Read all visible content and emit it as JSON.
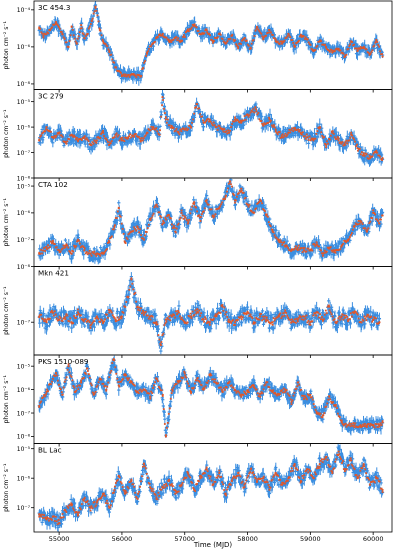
{
  "figure": {
    "xlabel": "Time (MJD)",
    "x_ticks": [
      55000,
      56000,
      57000,
      58000,
      59000,
      60000
    ],
    "colors": {
      "binned_points": "#3b8ee0",
      "fine_points": "#e0572a",
      "axes": "#000000"
    }
  },
  "chart_data": [
    {
      "type": "scatter",
      "panel_label": "3C 454.3",
      "ylabel": "photon cm⁻² s⁻¹",
      "y_scale": "log",
      "ylim": [
        5e-09,
        0.0003
      ],
      "y_ticks": [
        {
          "v": 1e-08,
          "label": "10⁻⁸"
        },
        {
          "v": 1e-06,
          "label": "10⁻⁶"
        },
        {
          "v": 0.0001,
          "label": "10⁻⁴"
        }
      ],
      "xlim": [
        54600,
        60300
      ],
      "series": [
        {
          "x": [
            54683,
            54750,
            54850,
            54950,
            55050,
            55150,
            55200,
            55280,
            55350,
            55400,
            55450,
            55520,
            55580,
            55650,
            55700,
            55800,
            55900,
            56000,
            56100,
            56200,
            56300,
            56400,
            56550,
            56650,
            56750,
            56850,
            56950,
            57050,
            57150,
            57250,
            57350,
            57450,
            57550,
            57650,
            57750,
            57850,
            57950,
            58050,
            58150,
            58250,
            58350,
            58450,
            58550,
            58650,
            58750,
            58850,
            58950,
            59050,
            59150,
            59250,
            59350,
            59450,
            59550,
            59650,
            59750,
            59850,
            59950,
            60050,
            60150
          ],
          "y": [
            1e-05,
            4e-06,
            8e-06,
            2e-05,
            5e-06,
            1e-06,
            1.2e-05,
            1.5e-06,
            1.5e-05,
            3e-06,
            5e-06,
            2.5e-05,
            0.00015,
            8e-06,
            2e-06,
            6e-07,
            8e-08,
            3e-08,
            3e-08,
            3e-08,
            2.5e-08,
            5e-07,
            3e-06,
            5e-06,
            2e-06,
            3e-06,
            2e-06,
            8e-06,
            1.5e-05,
            5e-06,
            8e-06,
            2e-06,
            5e-06,
            1.5e-06,
            4e-06,
            1e-06,
            3e-06,
            8e-07,
            1.2e-05,
            3e-06,
            8e-06,
            2e-06,
            1.5e-06,
            5e-06,
            1e-06,
            4e-06,
            2.5e-06,
            6e-07,
            2e-06,
            1e-06,
            5e-07,
            8e-07,
            3e-07,
            2e-06,
            6e-07,
            1e-06,
            4e-07,
            2e-06,
            3e-07
          ]
        }
      ]
    },
    {
      "type": "scatter",
      "panel_label": "3C 279",
      "ylabel": "photon cm⁻² s⁻¹",
      "y_scale": "log",
      "ylim": [
        1e-08,
        3e-05
      ],
      "y_ticks": [
        {
          "v": 1e-08,
          "label": "10⁻⁸"
        },
        {
          "v": 1e-07,
          "label": "10⁻⁷"
        },
        {
          "v": 1e-06,
          "label": "10⁻⁶"
        },
        {
          "v": 1e-05,
          "label": "10⁻⁵"
        }
      ],
      "xlim": [
        54600,
        60300
      ],
      "series": [
        {
          "x": [
            54683,
            54800,
            54900,
            55000,
            55100,
            55200,
            55300,
            55400,
            55500,
            55600,
            55700,
            55800,
            55900,
            56000,
            56100,
            56200,
            56300,
            56400,
            56500,
            56600,
            56646,
            56700,
            56800,
            56900,
            57000,
            57100,
            57189,
            57300,
            57400,
            57500,
            57600,
            57700,
            57800,
            57900,
            58000,
            58134,
            58250,
            58350,
            58450,
            58550,
            58650,
            58750,
            58850,
            58950,
            59050,
            59150,
            59250,
            59350,
            59450,
            59550,
            59650,
            59750,
            59850,
            59950,
            60050,
            60150
          ],
          "y": [
            3e-07,
            1e-06,
            4e-07,
            6e-07,
            2.5e-07,
            5e-07,
            3e-07,
            4e-07,
            2e-07,
            3e-07,
            6e-07,
            2e-07,
            5e-07,
            3e-07,
            4e-07,
            5e-07,
            3e-07,
            6e-07,
            1e-06,
            5e-07,
            1.5e-05,
            2e-06,
            1e-06,
            6e-07,
            8e-07,
            1e-06,
            8e-06,
            1.5e-06,
            2e-06,
            1e-06,
            8e-07,
            6e-07,
            2e-06,
            1.5e-06,
            3e-06,
            5e-06,
            1.2e-06,
            2e-06,
            8e-07,
            4e-07,
            6e-07,
            8e-07,
            6e-07,
            4e-07,
            3e-07,
            1e-06,
            2e-07,
            6e-07,
            3e-07,
            2e-07,
            5e-07,
            1.5e-07,
            8e-08,
            6e-08,
            1e-07,
            6e-08
          ]
        }
      ]
    },
    {
      "type": "scatter",
      "panel_label": "CTA 102",
      "ylabel": "photon cm⁻² s⁻¹",
      "y_scale": "log",
      "ylim": [
        1e-08,
        2e-05
      ],
      "y_ticks": [
        {
          "v": 1e-08,
          "label": "10⁻⁸"
        },
        {
          "v": 1e-07,
          "label": "10⁻⁷"
        },
        {
          "v": 1e-06,
          "label": "10⁻⁶"
        },
        {
          "v": 1e-05,
          "label": "10⁻⁵"
        }
      ],
      "xlim": [
        54600,
        60300
      ],
      "series": [
        {
          "x": [
            54683,
            54800,
            54900,
            55000,
            55100,
            55200,
            55300,
            55400,
            55500,
            55600,
            55700,
            55800,
            55880,
            55950,
            56050,
            56150,
            56250,
            56350,
            56450,
            56550,
            56650,
            56750,
            56850,
            56950,
            57050,
            57150,
            57250,
            57350,
            57450,
            57550,
            57650,
            57720,
            57800,
            57900,
            58000,
            58100,
            58200,
            58300,
            58400,
            58500,
            58600,
            58700,
            58800,
            58900,
            59000,
            59100,
            59200,
            59300,
            59400,
            59500,
            59600,
            59700,
            59800,
            59900,
            60000,
            60100,
            60150
          ],
          "y": [
            3e-08,
            5e-08,
            8e-08,
            4e-08,
            6e-08,
            3e-08,
            1e-07,
            4e-08,
            3e-08,
            3e-08,
            3e-08,
            8e-08,
            3e-07,
            1.5e-06,
            8e-08,
            2e-07,
            3e-07,
            1e-07,
            6e-07,
            2e-06,
            4e-07,
            8e-07,
            2e-07,
            1e-06,
            4e-07,
            2.5e-06,
            5e-07,
            3e-06,
            8e-07,
            1.5e-06,
            4e-06,
            1.5e-05,
            3e-06,
            8e-06,
            2e-06,
            1e-06,
            3e-06,
            8e-07,
            2e-07,
            1e-07,
            6e-08,
            4e-08,
            5e-08,
            4e-08,
            4e-08,
            8e-08,
            3e-08,
            5e-08,
            4e-08,
            6e-08,
            1e-07,
            3e-07,
            5e-07,
            2e-07,
            1e-06,
            4e-07,
            8e-07
          ]
        }
      ]
    },
    {
      "type": "scatter",
      "panel_label": "Mkn 421",
      "ylabel": "photon cm⁻² s⁻¹",
      "y_scale": "log",
      "ylim": [
        1e-08,
        5e-06
      ],
      "y_ticks": [
        {
          "v": 1e-07,
          "label": "10⁻⁷"
        }
      ],
      "xlim": [
        54600,
        60300
      ],
      "series": [
        {
          "x": [
            54683,
            54800,
            54900,
            55000,
            55100,
            55200,
            55300,
            55400,
            55500,
            55600,
            55700,
            55800,
            55900,
            56000,
            56100,
            56150,
            56250,
            56350,
            56450,
            56550,
            56620,
            56700,
            56800,
            56900,
            57000,
            57100,
            57200,
            57300,
            57400,
            57500,
            57600,
            57700,
            57800,
            57900,
            58000,
            58100,
            58200,
            58300,
            58400,
            58500,
            58600,
            58700,
            58800,
            58900,
            59000,
            59100,
            59200,
            59300,
            59400,
            59500,
            59600,
            59700,
            59800,
            59900,
            60000,
            60100
          ],
          "y": [
            1.5e-07,
            1e-07,
            2e-07,
            1.2e-07,
            1.5e-07,
            1e-07,
            2e-07,
            1.2e-07,
            8e-08,
            1.5e-07,
            1e-07,
            2e-07,
            1.2e-07,
            1.5e-07,
            6e-07,
            2e-06,
            3e-07,
            2e-07,
            1.5e-07,
            1e-07,
            2e-08,
            1.2e-07,
            1.5e-07,
            2e-07,
            1e-07,
            1.5e-07,
            2.5e-07,
            1.2e-07,
            1e-07,
            1.5e-07,
            3e-07,
            1.2e-07,
            1e-07,
            1.5e-07,
            2e-07,
            1e-07,
            1.5e-07,
            1.2e-07,
            1e-07,
            1.5e-07,
            2e-07,
            1e-07,
            1.2e-07,
            1.5e-07,
            1e-07,
            2e-07,
            1.2e-07,
            3e-07,
            1e-07,
            1.5e-07,
            1.2e-07,
            2e-07,
            1e-07,
            1.5e-07,
            1.2e-07,
            1e-07
          ]
        }
      ]
    },
    {
      "type": "scatter",
      "panel_label": "PKS 1510-089",
      "ylabel": "photon cm⁻² s⁻¹",
      "y_scale": "log",
      "ylim": [
        5e-09,
        3e-05
      ],
      "y_ticks": [
        {
          "v": 1e-08,
          "label": "10⁻⁸"
        },
        {
          "v": 1e-07,
          "label": "10⁻⁷"
        },
        {
          "v": 1e-06,
          "label": "10⁻⁶"
        },
        {
          "v": 1e-05,
          "label": "10⁻⁵"
        }
      ],
      "xlim": [
        54600,
        60300
      ],
      "series": [
        {
          "x": [
            54683,
            54800,
            54950,
            55050,
            55150,
            55250,
            55350,
            55450,
            55550,
            55650,
            55750,
            55870,
            55950,
            56050,
            56150,
            56250,
            56350,
            56450,
            56550,
            56650,
            56700,
            56800,
            56900,
            57000,
            57100,
            57200,
            57300,
            57400,
            57500,
            57600,
            57700,
            57800,
            57900,
            58000,
            58100,
            58200,
            58300,
            58400,
            58500,
            58600,
            58700,
            58800,
            58900,
            59000,
            59100,
            59200,
            59300,
            59400,
            59500,
            59600,
            59700,
            59800,
            59900,
            60000,
            60100,
            60150
          ],
          "y": [
            2e-07,
            8e-07,
            5e-06,
            6e-07,
            1e-05,
            8e-07,
            2e-06,
            8e-06,
            6e-07,
            3e-06,
            1e-06,
            2e-05,
            1.5e-06,
            4e-06,
            2e-06,
            8e-07,
            1e-06,
            5e-07,
            3e-06,
            6e-07,
            1e-08,
            1e-06,
            2e-06,
            5e-06,
            8e-07,
            3e-06,
            1e-06,
            4e-06,
            2e-06,
            8e-07,
            2e-06,
            1e-06,
            6e-07,
            8e-07,
            1.5e-06,
            5e-07,
            2e-06,
            8e-07,
            6e-07,
            1e-06,
            3e-07,
            2e-06,
            4e-07,
            6e-07,
            1e-07,
            8e-08,
            5e-07,
            2e-07,
            4e-08,
            3e-08,
            3e-08,
            3e-08,
            3e-08,
            3e-08,
            3e-08,
            4e-08
          ]
        }
      ]
    },
    {
      "type": "scatter",
      "panel_label": "BL Lac",
      "ylabel": "photon cm⁻² s⁻¹",
      "y_scale": "log",
      "ylim": [
        1.5e-08,
        1.5e-05
      ],
      "y_ticks": [
        {
          "v": 1e-07,
          "label": "10⁻⁷"
        },
        {
          "v": 1e-06,
          "label": "10⁻⁶"
        },
        {
          "v": 1e-05,
          "label": "10⁻⁵"
        }
      ],
      "xlim": [
        54600,
        60300
      ],
      "series": [
        {
          "x": [
            54683,
            54800,
            54900,
            55000,
            55100,
            55200,
            55300,
            55400,
            55500,
            55600,
            55700,
            55800,
            55880,
            55950,
            56050,
            56150,
            56250,
            56350,
            56450,
            56550,
            56650,
            56750,
            56850,
            56950,
            57050,
            57150,
            57250,
            57350,
            57450,
            57550,
            57650,
            57750,
            57850,
            57950,
            58050,
            58150,
            58250,
            58350,
            58450,
            58550,
            58650,
            58750,
            58850,
            58950,
            59050,
            59150,
            59250,
            59350,
            59450,
            59550,
            59650,
            59750,
            59850,
            59950,
            60050,
            60150
          ],
          "y": [
            6e-08,
            4e-08,
            5e-08,
            3e-08,
            8e-08,
            1.2e-07,
            6e-08,
            2e-07,
            1e-07,
            1.5e-07,
            3e-07,
            1e-07,
            4e-07,
            1.2e-06,
            3e-07,
            8e-07,
            2e-07,
            3e-06,
            5e-07,
            2e-07,
            5e-07,
            8e-07,
            3e-07,
            6e-07,
            1.5e-06,
            4e-07,
            1e-06,
            2e-06,
            6e-07,
            1.5e-06,
            3e-07,
            8e-07,
            1.5e-06,
            5e-07,
            2e-06,
            8e-07,
            1e-06,
            5e-07,
            1.5e-06,
            6e-07,
            1e-06,
            3e-06,
            8e-07,
            2e-06,
            1e-06,
            3e-06,
            5e-06,
            1.5e-06,
            8e-06,
            2e-06,
            4e-06,
            1e-06,
            3e-06,
            6e-07,
            1e-06,
            4e-07
          ]
        }
      ]
    }
  ]
}
